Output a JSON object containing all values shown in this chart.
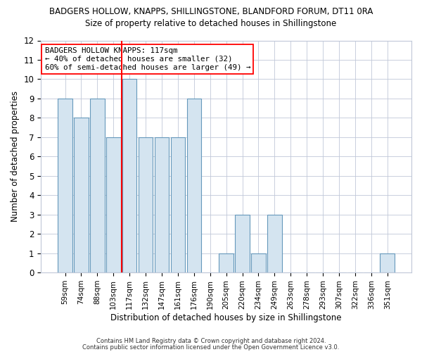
{
  "title_top": "BADGERS HOLLOW, KNAPPS, SHILLINGSTONE, BLANDFORD FORUM, DT11 0RA",
  "title_sub": "Size of property relative to detached houses in Shillingstone",
  "xlabel": "Distribution of detached houses by size in Shillingstone",
  "ylabel": "Number of detached properties",
  "bar_labels": [
    "59sqm",
    "74sqm",
    "88sqm",
    "103sqm",
    "117sqm",
    "132sqm",
    "147sqm",
    "161sqm",
    "176sqm",
    "190sqm",
    "205sqm",
    "220sqm",
    "234sqm",
    "249sqm",
    "263sqm",
    "278sqm",
    "293sqm",
    "307sqm",
    "322sqm",
    "336sqm",
    "351sqm"
  ],
  "bar_values": [
    9,
    8,
    9,
    7,
    10,
    7,
    7,
    7,
    9,
    0,
    1,
    3,
    1,
    3,
    0,
    0,
    0,
    0,
    0,
    0,
    1
  ],
  "bar_color": "#d4e4f0",
  "bar_edge_color": "#6699bb",
  "highlight_index": 4,
  "annotation_title": "BADGERS HOLLOW KNAPPS: 117sqm",
  "annotation_line1": "← 40% of detached houses are smaller (32)",
  "annotation_line2": "60% of semi-detached houses are larger (49) →",
  "ylim": [
    0,
    12
  ],
  "yticks": [
    0,
    1,
    2,
    3,
    4,
    5,
    6,
    7,
    8,
    9,
    10,
    11,
    12
  ],
  "footnote1": "Contains HM Land Registry data © Crown copyright and database right 2024.",
  "footnote2": "Contains public sector information licensed under the Open Government Licence v3.0.",
  "bg_color": "#ffffff",
  "plot_bg_color": "#ffffff",
  "grid_color": "#c0c8d8"
}
